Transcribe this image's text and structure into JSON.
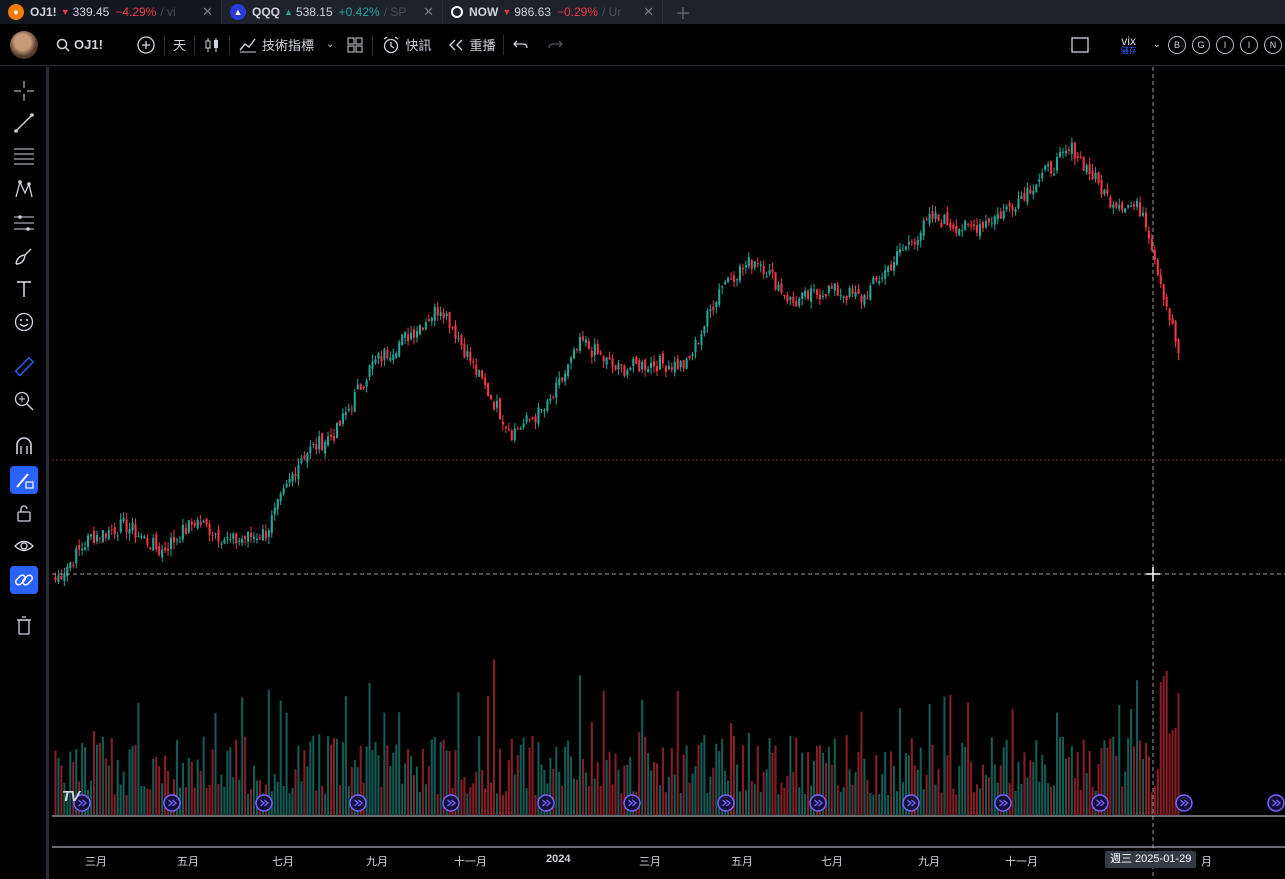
{
  "tabs": [
    {
      "symbol": "OJ1!",
      "price": "339.45",
      "change": "−4.29%",
      "suffix": "/ vi",
      "direction": "down",
      "active": true,
      "icon": "orange-circle-icon",
      "icon_color": "#f57c00"
    },
    {
      "symbol": "QQQ",
      "price": "538.15",
      "change": "+0.42%",
      "suffix": "/ SP",
      "direction": "up",
      "active": false,
      "icon": "invesco-icon",
      "icon_color": "#2a3bd8"
    },
    {
      "symbol": "NOW",
      "price": "986.63",
      "change": "−0.29%",
      "suffix": "/ Ur",
      "direction": "down",
      "active": false,
      "icon": "servicenow-icon",
      "icon_color": "#1e222d"
    }
  ],
  "toolbar": {
    "symbol": "OJ1!",
    "interval": "天",
    "indicators_label": "技術指標",
    "alert_label": "快訊",
    "replay_label": "重播",
    "vix_label": "vix",
    "vix_sub": "儲存",
    "circle_buttons": [
      "B",
      "G",
      "I",
      "I",
      "N"
    ]
  },
  "chart": {
    "month_labels": [
      "三月",
      "五月",
      "七月",
      "九月",
      "十一月",
      "2024",
      "三月",
      "五月",
      "七月",
      "九月",
      "十一月",
      "月"
    ],
    "crosshair_date": "週三 2025-01-29",
    "logo_text": "TV"
  },
  "colors": {
    "up": "#26a69a",
    "down": "#f23645",
    "accent": "#2962ff",
    "event_marker": "#7b61ff"
  },
  "chart_data": {
    "type": "candlestick",
    "x_start": "2023-02",
    "x_end": "2025-01-29",
    "price_path": [
      {
        "date": "2023-02",
        "value": 60
      },
      {
        "date": "2023-03",
        "value": 78
      },
      {
        "date": "2023-04",
        "value": 83
      },
      {
        "date": "2023-05",
        "value": 72
      },
      {
        "date": "2023-05",
        "value": 85
      },
      {
        "date": "2023-06",
        "value": 76
      },
      {
        "date": "2023-07",
        "value": 80
      },
      {
        "date": "2023-08",
        "value": 112
      },
      {
        "date": "2023-09",
        "value": 122
      },
      {
        "date": "2023-10",
        "value": 150
      },
      {
        "date": "2023-11",
        "value": 162
      },
      {
        "date": "2023-11",
        "value": 175
      },
      {
        "date": "2023-12",
        "value": 147
      },
      {
        "date": "2024-01",
        "value": 122
      },
      {
        "date": "2024-01",
        "value": 132
      },
      {
        "date": "2024-02",
        "value": 160
      },
      {
        "date": "2024-03",
        "value": 148
      },
      {
        "date": "2024-04",
        "value": 151
      },
      {
        "date": "2024-05",
        "value": 150
      },
      {
        "date": "2024-06",
        "value": 185
      },
      {
        "date": "2024-06",
        "value": 195
      },
      {
        "date": "2024-07",
        "value": 176
      },
      {
        "date": "2024-08",
        "value": 182
      },
      {
        "date": "2024-08",
        "value": 178
      },
      {
        "date": "2024-09",
        "value": 196
      },
      {
        "date": "2024-10",
        "value": 212
      },
      {
        "date": "2024-11",
        "value": 207
      },
      {
        "date": "2024-11",
        "value": 214
      },
      {
        "date": "2024-12",
        "value": 228
      },
      {
        "date": "2024-12",
        "value": 241
      },
      {
        "date": "2025-01",
        "value": 220
      },
      {
        "date": "2025-01",
        "value": 215
      },
      {
        "date": "2025-01",
        "value": 155
      }
    ],
    "ylim": [
      55,
      250
    ]
  }
}
